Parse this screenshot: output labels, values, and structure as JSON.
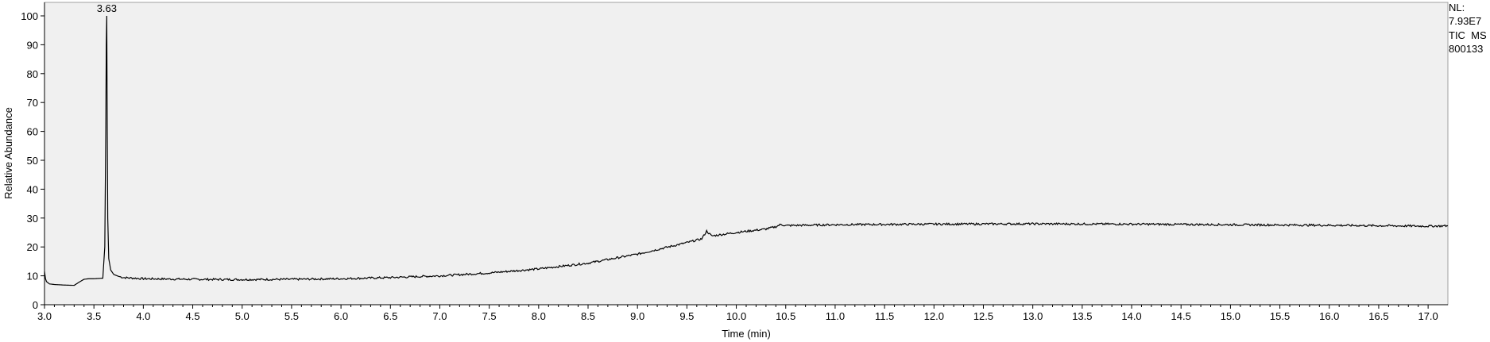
{
  "chart_data": {
    "type": "line",
    "xlabel": "Time (min)",
    "ylabel": "Relative Abundance",
    "xlim": [
      3.0,
      17.2
    ],
    "ylim": [
      0,
      100
    ],
    "x_ticks": [
      "3.0",
      "3.5",
      "4.0",
      "4.5",
      "5.0",
      "5.5",
      "6.0",
      "6.5",
      "7.0",
      "7.5",
      "8.0",
      "8.5",
      "9.0",
      "9.5",
      "10.0",
      "10.5",
      "11.0",
      "11.5",
      "12.0",
      "12.5",
      "13.0",
      "13.5",
      "14.0",
      "14.5",
      "15.0",
      "15.5",
      "16.0",
      "16.5",
      "17.0"
    ],
    "y_ticks": [
      "0",
      "10",
      "20",
      "30",
      "40",
      "50",
      "60",
      "70",
      "80",
      "90",
      "100"
    ],
    "peak_label": "3.63",
    "peak_position": [
      3.63,
      100
    ],
    "info": [
      "NL:",
      "7.93E7",
      "TIC  MS",
      "800133"
    ],
    "series": [
      {
        "x": [
          3.0,
          3.01,
          3.02,
          3.05,
          3.1,
          3.2,
          3.3,
          3.35,
          3.4,
          3.45,
          3.5,
          3.55,
          3.59,
          3.61,
          3.62,
          3.625,
          3.63,
          3.635,
          3.64,
          3.65,
          3.67,
          3.7,
          3.75,
          3.8,
          3.9,
          4.0,
          4.5,
          5.0,
          5.5,
          6.0,
          6.5,
          7.0,
          7.5,
          8.0,
          8.5,
          9.0,
          9.5,
          9.65,
          9.7,
          9.75,
          10.0,
          10.3,
          10.4,
          10.45,
          10.5,
          11.0,
          12.0,
          13.0,
          14.0,
          15.0,
          16.0,
          17.0,
          17.2
        ],
        "y": [
          11.5,
          9.0,
          8.0,
          7.2,
          7.0,
          6.8,
          6.7,
          7.8,
          8.8,
          9.0,
          9.0,
          9.1,
          9.2,
          20.0,
          60.0,
          90.0,
          100.0,
          60.0,
          30.0,
          16.0,
          12.0,
          10.5,
          9.8,
          9.4,
          9.2,
          9.0,
          8.8,
          8.7,
          8.8,
          9.0,
          9.4,
          10.0,
          11.0,
          12.4,
          14.4,
          17.5,
          21.5,
          22.8,
          25.5,
          23.8,
          25.0,
          26.2,
          27.0,
          27.8,
          27.4,
          27.7,
          27.9,
          28.0,
          27.9,
          27.7,
          27.5,
          27.2,
          27.3
        ]
      }
    ]
  }
}
